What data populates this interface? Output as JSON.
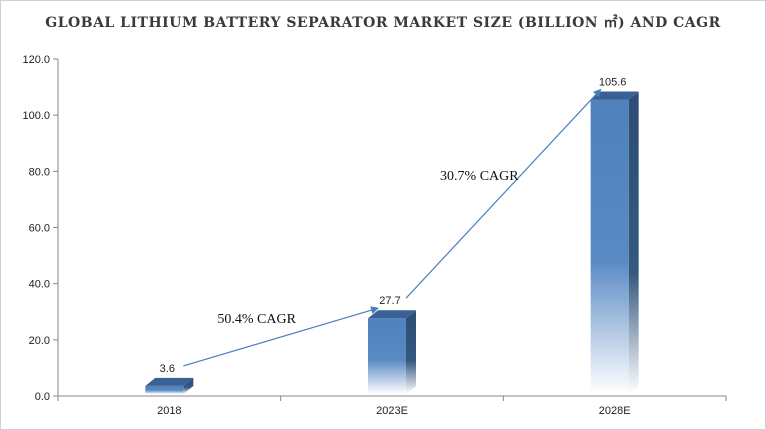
{
  "chart_data": {
    "type": "bar",
    "title": "GLOBAL LITHIUM BATTERY SEPARATOR MARKET SIZE (BILLION ㎡) AND CAGR",
    "xlabel": "",
    "ylabel": "",
    "categories": [
      "2018",
      "2023E",
      "2028E"
    ],
    "values": [
      3.6,
      27.7,
      105.6
    ],
    "value_labels": [
      "3.6",
      "27.7",
      "105.6"
    ],
    "ylim": [
      0,
      120
    ],
    "yticks": [
      0,
      20,
      40,
      60,
      80,
      100,
      120
    ],
    "ytick_labels": [
      "0.0",
      "20.0",
      "40.0",
      "60.0",
      "80.0",
      "100.0",
      "120.0"
    ],
    "grid": false,
    "legend": "none",
    "annotations": [
      {
        "text": "50.4% CAGR",
        "from_category": "2018",
        "to_category": "2023E"
      },
      {
        "text": "30.7% CAGR",
        "from_category": "2023E",
        "to_category": "2028E"
      }
    ],
    "colors": {
      "bar_front": "#4f81bd",
      "bar_side": "#2c4d75",
      "bar_top": "#3a6196",
      "arrow": "#4a7ebb",
      "axis": "#888888"
    }
  }
}
